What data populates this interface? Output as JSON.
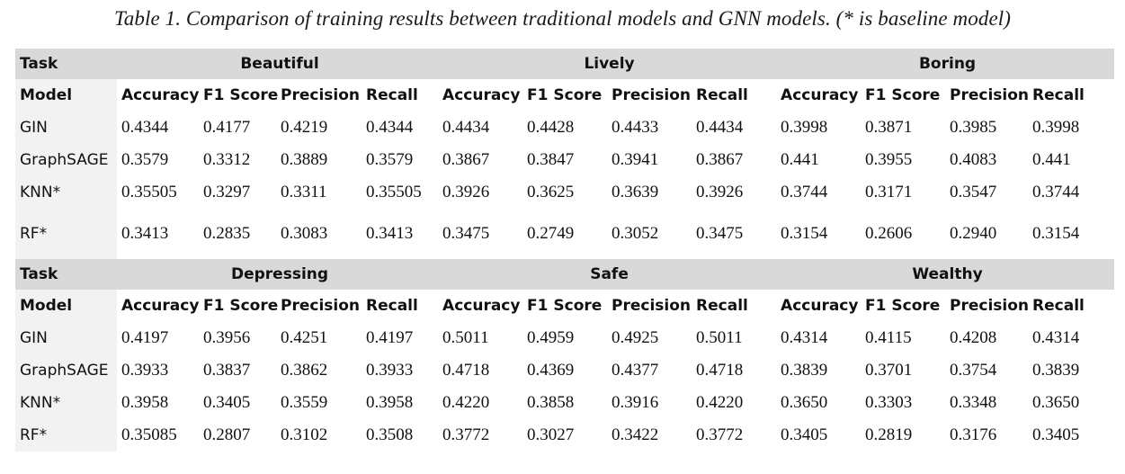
{
  "caption": "Table 1. Comparison of training results between traditional models and GNN models. (* is baseline model)",
  "sections": [
    {
      "task_label": "Task",
      "groups": [
        "Beautiful",
        "Lively",
        "Boring"
      ],
      "model_label": "Model",
      "metrics": [
        "Accuracy",
        "F1 Score",
        "Precision",
        "Recall",
        "Accuracy",
        "F1 Score",
        "Precision",
        "Recall",
        "Accuracy",
        "F1 Score",
        "Precision",
        "Recall"
      ],
      "rows": [
        {
          "model": "GIN",
          "values": [
            "0.4344",
            "0.4177",
            "0.4219",
            "0.4344",
            "0.4434",
            "0.4428",
            "0.4433",
            "0.4434",
            "0.3998",
            "0.3871",
            "0.3985",
            "0.3998"
          ]
        },
        {
          "model": "GraphSAGE",
          "values": [
            "0.3579",
            "0.3312",
            "0.3889",
            "0.3579",
            "0.3867",
            "0.3847",
            "0.3941",
            "0.3867",
            "0.441",
            "0.3955",
            "0.4083",
            "0.441"
          ]
        },
        {
          "model": "KNN*",
          "values": [
            "0.35505",
            "0.3297",
            "0.3311",
            "0.35505",
            "0.3926",
            "0.3625",
            "0.3639",
            "0.3926",
            "0.3744",
            "0.3171",
            "0.3547",
            "0.3744"
          ]
        },
        {
          "model": "RF*",
          "values": [
            "0.3413",
            "0.2835",
            "0.3083",
            "0.3413",
            "0.3475",
            "0.2749",
            "0.3052",
            "0.3475",
            "0.3154",
            "0.2606",
            "0.2940",
            "0.3154"
          ]
        }
      ]
    },
    {
      "task_label": "Task",
      "groups": [
        "Depressing",
        "Safe",
        "Wealthy"
      ],
      "model_label": "Model",
      "metrics": [
        "Accuracy",
        "F1 Score",
        "Precision",
        "Recall",
        "Accuracy",
        "F1 Score",
        "Precision",
        "Recall",
        "Accuracy",
        "F1 Score",
        "Precision",
        "Recall"
      ],
      "rows": [
        {
          "model": "GIN",
          "values": [
            "0.4197",
            "0.3956",
            "0.4251",
            "0.4197",
            "0.5011",
            "0.4959",
            "0.4925",
            "0.5011",
            "0.4314",
            "0.4115",
            "0.4208",
            "0.4314"
          ]
        },
        {
          "model": "GraphSAGE",
          "values": [
            "0.3933",
            "0.3837",
            "0.3862",
            "0.3933",
            "0.4718",
            "0.4369",
            "0.4377",
            "0.4718",
            "0.3839",
            "0.3701",
            "0.3754",
            "0.3839"
          ]
        },
        {
          "model": "KNN*",
          "values": [
            "0.3958",
            "0.3405",
            "0.3559",
            "0.3958",
            "0.4220",
            "0.3858",
            "0.3916",
            "0.4220",
            "0.3650",
            "0.3303",
            "0.3348",
            "0.3650"
          ]
        },
        {
          "model": "RF*",
          "values": [
            "0.35085",
            "0.2807",
            "0.3102",
            "0.3508",
            "0.3772",
            "0.3027",
            "0.3422",
            "0.3772",
            "0.3405",
            "0.2819",
            "0.3176",
            "0.3405"
          ]
        }
      ]
    }
  ]
}
